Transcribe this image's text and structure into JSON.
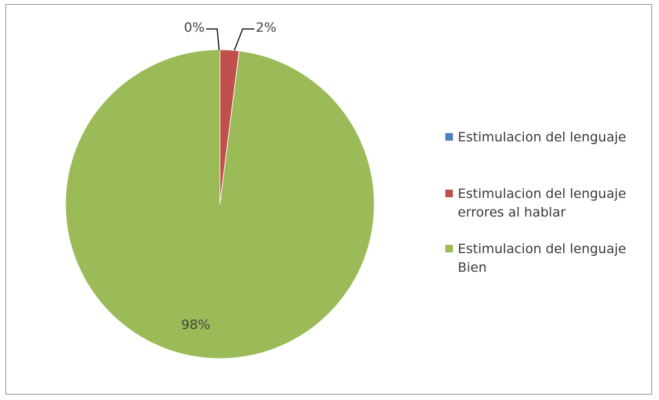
{
  "chart_data": {
    "type": "pie",
    "title": "",
    "series": [
      {
        "labels": [
          "Estimulacion del lenguaje",
          "Estimulacion del lenguaje errores al hablar",
          "Estimulacion del lenguaje Bien"
        ],
        "values": [
          0,
          2,
          98
        ],
        "colors": [
          "#4f81bd",
          "#c0504d",
          "#9bbb59"
        ],
        "data_labels": [
          "0%",
          "2%",
          "98%"
        ]
      }
    ],
    "legend": {
      "placement": "right",
      "entries": [
        {
          "lines": [
            "Estimulacion del lenguaje"
          ]
        },
        {
          "lines": [
            "Estimulacion del lenguaje",
            "errores al hablar"
          ]
        },
        {
          "lines": [
            "Estimulacion del lenguaje",
            "Bien"
          ]
        }
      ]
    }
  }
}
